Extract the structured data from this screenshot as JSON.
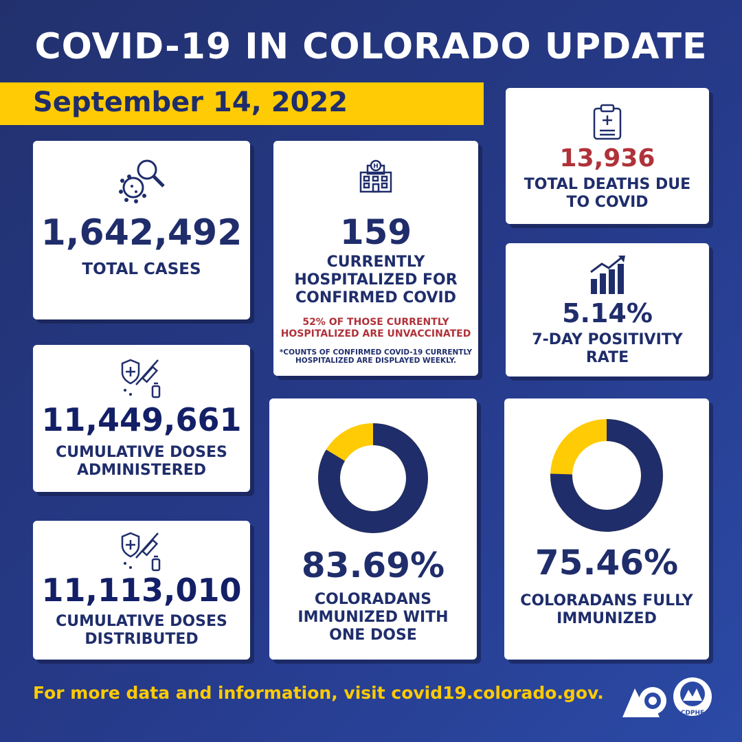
{
  "header": {
    "title": "COVID-19 IN COLORADO UPDATE",
    "date": "September 14, 2022"
  },
  "cards": {
    "total_cases": {
      "value": "1,642,492",
      "label": "TOTAL CASES",
      "icon": "virus-magnifier-icon"
    },
    "hospitalized": {
      "value": "159",
      "label": "CURRENTLY HOSPITALIZED FOR CONFIRMED COVID",
      "note_red": "52% OF THOSE CURRENTLY HOSPITALIZED ARE UNVACCINATED",
      "footnote": "*COUNTS OF CONFIRMED COVID-19 CURRENTLY HOSPITALIZED ARE DISPLAYED WEEKLY.",
      "icon": "hospital-icon"
    },
    "deaths": {
      "value": "13,936",
      "label": "TOTAL DEATHS DUE TO COVID",
      "icon": "clipboard-medical-icon"
    },
    "positivity": {
      "value": "5.14%",
      "label": "7-DAY POSITIVITY RATE",
      "icon": "rising-bar-chart-icon"
    },
    "doses_administered": {
      "value": "11,449,661",
      "label": "CUMULATIVE DOSES ADMINISTERED",
      "icon": "vaccine-shield-icon"
    },
    "doses_distributed": {
      "value": "11,113,010",
      "label": "CUMULATIVE DOSES DISTRIBUTED",
      "icon": "vaccine-shield-icon"
    },
    "one_dose": {
      "value": "83.69%",
      "label": "COLORADANS IMMUNIZED WITH ONE DOSE",
      "fraction": 0.8369
    },
    "fully": {
      "value": "75.46%",
      "label": "COLORADANS FULLY IMMUNIZED",
      "fraction": 0.7546
    }
  },
  "footer": {
    "text": "For more data and information, visit covid19.colorado.gov.",
    "logo_text": "CDPHE"
  },
  "colors": {
    "navy": "#1f2d6b",
    "yellow": "#ffcb05",
    "red": "#b0323a",
    "white": "#ffffff"
  }
}
